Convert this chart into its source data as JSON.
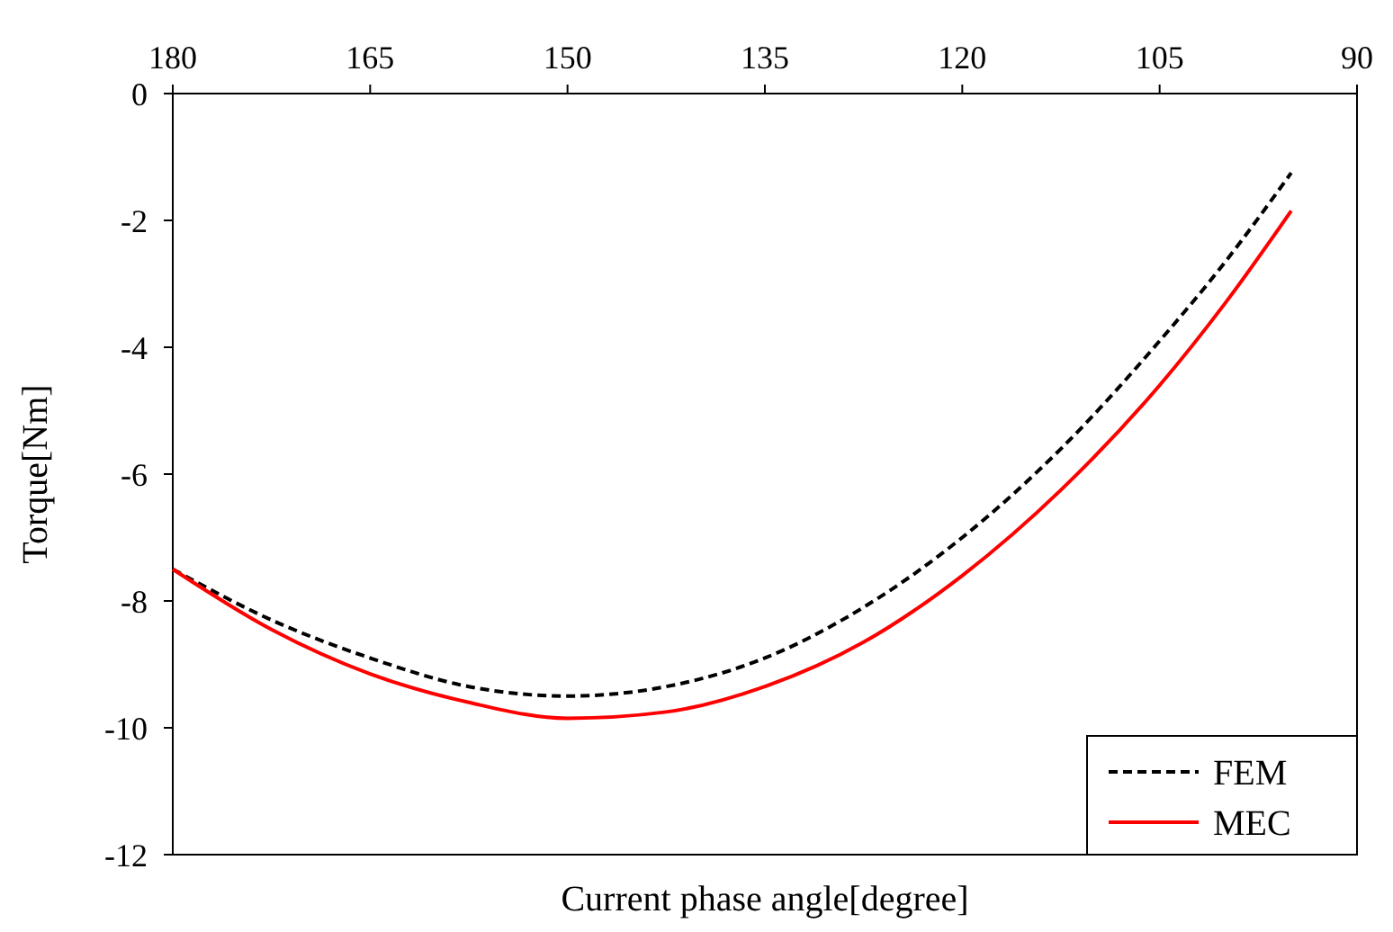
{
  "chart_data": {
    "type": "line",
    "xlabel": "Current phase angle[degree]",
    "ylabel": "Torque[Nm]",
    "xlim": [
      180,
      90
    ],
    "xticks": [
      180,
      165,
      150,
      135,
      120,
      105,
      90
    ],
    "ylim": [
      -12,
      0
    ],
    "yticks": [
      0,
      -2,
      -4,
      -6,
      -8,
      -10,
      -12
    ],
    "legend": "bottom right",
    "grid": false,
    "series": [
      {
        "name": "FEM",
        "color": "#000000",
        "line_style": "dashed",
        "x": [
          180,
          172.5,
          165,
          157.5,
          150,
          142.5,
          135,
          127.5,
          120,
          112.5,
          105,
          100,
          95
        ],
        "values": [
          -7.5,
          -8.3,
          -8.9,
          -9.35,
          -9.5,
          -9.35,
          -8.9,
          -8.1,
          -7.0,
          -5.6,
          -3.9,
          -2.65,
          -1.25
        ]
      },
      {
        "name": "MEC",
        "color": "#ff0000",
        "line_style": "solid",
        "x": [
          180,
          172.5,
          165,
          157.5,
          150,
          142.5,
          135,
          127.5,
          120,
          112.5,
          105,
          100,
          95
        ],
        "values": [
          -7.5,
          -8.45,
          -9.15,
          -9.6,
          -9.85,
          -9.75,
          -9.35,
          -8.65,
          -7.6,
          -6.25,
          -4.6,
          -3.3,
          -1.85
        ]
      }
    ]
  }
}
